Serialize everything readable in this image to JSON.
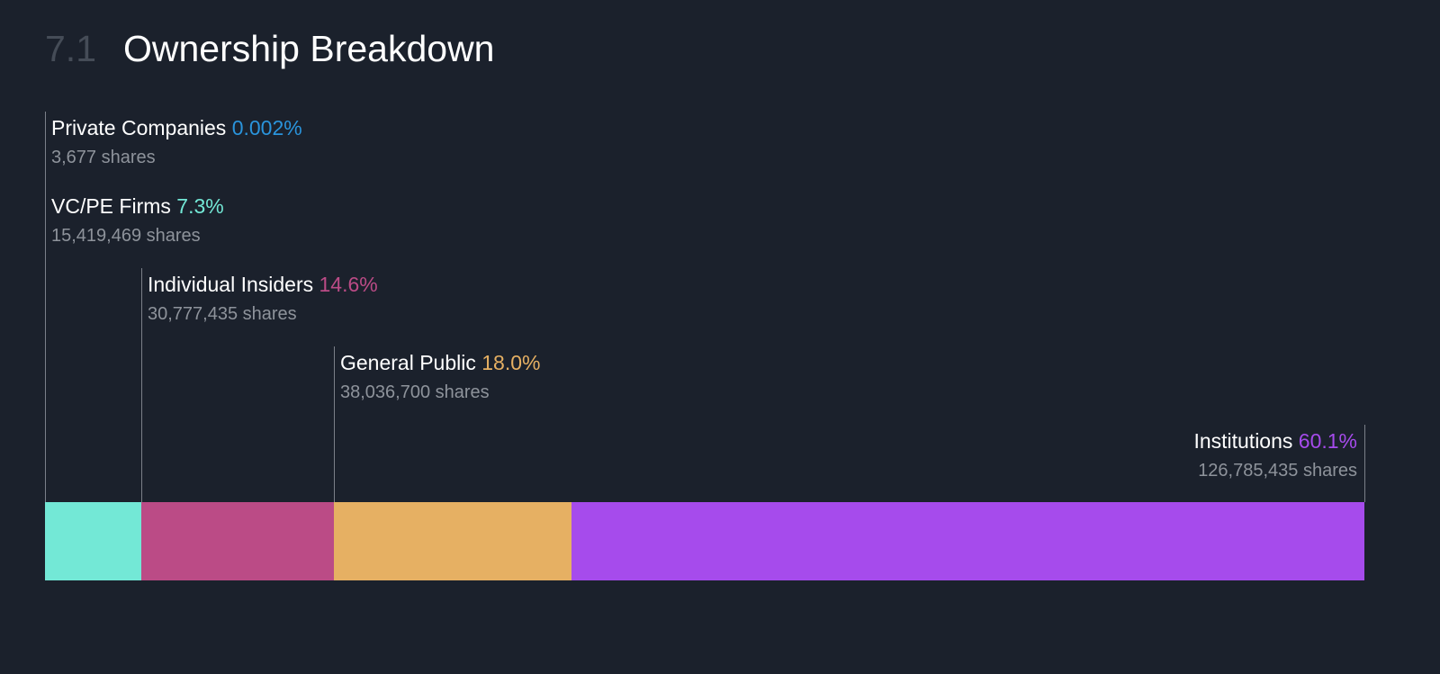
{
  "section": {
    "number": "7.1",
    "title": "Ownership Breakdown"
  },
  "chart_data": {
    "type": "bar",
    "orientation": "horizontal-stacked",
    "title": "Ownership Breakdown",
    "unit": "%",
    "categories": [
      "Private Companies",
      "VC/PE Firms",
      "Individual Insiders",
      "General Public",
      "Institutions"
    ],
    "series": [
      {
        "name": "Private Companies",
        "value": 0.002,
        "value_label": "0.002%",
        "shares": "3,677 shares",
        "color": "#2a94dc"
      },
      {
        "name": "VC/PE Firms",
        "value": 7.3,
        "value_label": "7.3%",
        "shares": "15,419,469 shares",
        "color": "#73e8d6"
      },
      {
        "name": "Individual Insiders",
        "value": 14.6,
        "value_label": "14.6%",
        "shares": "30,777,435 shares",
        "color": "#bb4b86"
      },
      {
        "name": "General Public",
        "value": 18.0,
        "value_label": "18.0%",
        "shares": "38,036,700 shares",
        "color": "#e6b063"
      },
      {
        "name": "Institutions",
        "value": 60.1,
        "value_label": "60.1%",
        "shares": "126,785,435 shares",
        "color": "#a64bec"
      }
    ]
  },
  "colors": {
    "background": "#1b212c",
    "section_number": "#454c57",
    "label_primary": "#ffffff",
    "label_secondary": "#8e939b",
    "leader_line": "#7b8089"
  }
}
